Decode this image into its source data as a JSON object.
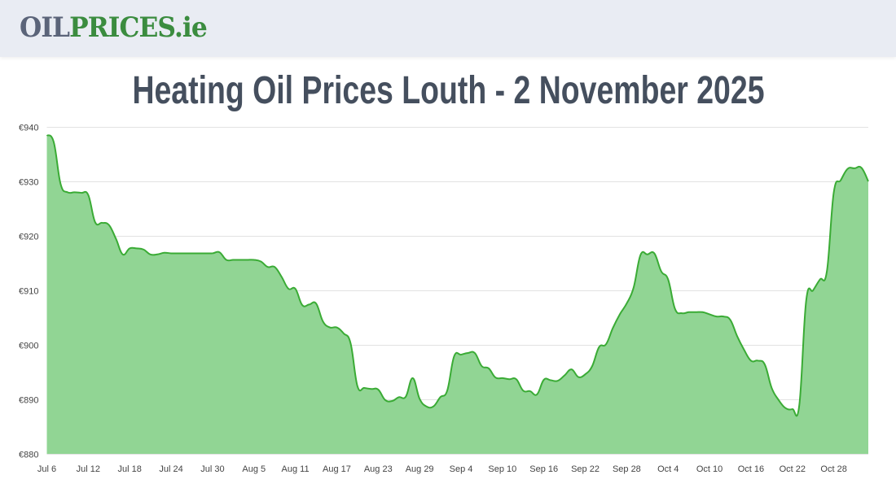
{
  "header": {
    "logo_part1": "OIL",
    "logo_part2": "PRICES.ie"
  },
  "page_title": "Heating Oil Prices Louth - 2 November 2025",
  "colors": {
    "line": "#3aab35",
    "fill": "#91d594",
    "grid": "#e2e2e2",
    "title": "#454f5e",
    "logo_gray": "#5b6479",
    "logo_green": "#3b8c3f"
  },
  "chart_data": {
    "type": "area",
    "title": "",
    "xlabel": "",
    "ylabel": "",
    "ylim": [
      880,
      940
    ],
    "y_ticks": [
      "€880",
      "€890",
      "€900",
      "€910",
      "€920",
      "€930",
      "€940"
    ],
    "y_tick_values": [
      880,
      890,
      900,
      910,
      920,
      930,
      940
    ],
    "x_ticks": [
      "Jul 6",
      "Jul 12",
      "Jul 18",
      "Jul 24",
      "Jul 30",
      "Aug 5",
      "Aug 11",
      "Aug 17",
      "Aug 23",
      "Aug 29",
      "Sep 4",
      "Sep 10",
      "Sep 16",
      "Sep 22",
      "Sep 28",
      "Oct 4",
      "Oct 10",
      "Oct 16",
      "Oct 22",
      "Oct 28"
    ],
    "grid": true,
    "x": [
      "Jul 6",
      "Jul 7",
      "Jul 8",
      "Jul 9",
      "Jul 10",
      "Jul 11",
      "Jul 12",
      "Jul 13",
      "Jul 14",
      "Jul 15",
      "Jul 16",
      "Jul 17",
      "Jul 18",
      "Jul 19",
      "Jul 20",
      "Jul 21",
      "Jul 22",
      "Jul 23",
      "Jul 24",
      "Jul 25",
      "Jul 26",
      "Jul 27",
      "Jul 28",
      "Jul 29",
      "Jul 30",
      "Jul 31",
      "Aug 1",
      "Aug 2",
      "Aug 3",
      "Aug 4",
      "Aug 5",
      "Aug 6",
      "Aug 7",
      "Aug 8",
      "Aug 9",
      "Aug 10",
      "Aug 11",
      "Aug 12",
      "Aug 13",
      "Aug 14",
      "Aug 15",
      "Aug 16",
      "Aug 17",
      "Aug 18",
      "Aug 19",
      "Aug 20",
      "Aug 21",
      "Aug 22",
      "Aug 23",
      "Aug 24",
      "Aug 25",
      "Aug 26",
      "Aug 27",
      "Aug 28",
      "Aug 29",
      "Aug 30",
      "Aug 31",
      "Sep 1",
      "Sep 2",
      "Sep 3",
      "Sep 4",
      "Sep 5",
      "Sep 6",
      "Sep 7",
      "Sep 8",
      "Sep 9",
      "Sep 10",
      "Sep 11",
      "Sep 12",
      "Sep 13",
      "Sep 14",
      "Sep 15",
      "Sep 16",
      "Sep 17",
      "Sep 18",
      "Sep 19",
      "Sep 20",
      "Sep 21",
      "Sep 22",
      "Sep 23",
      "Sep 24",
      "Sep 25",
      "Sep 26",
      "Sep 27",
      "Sep 28",
      "Sep 29",
      "Sep 30",
      "Oct 1",
      "Oct 2",
      "Oct 3",
      "Oct 4",
      "Oct 5",
      "Oct 6",
      "Oct 7",
      "Oct 8",
      "Oct 9",
      "Oct 10",
      "Oct 11",
      "Oct 12",
      "Oct 13",
      "Oct 14",
      "Oct 15",
      "Oct 16",
      "Oct 17",
      "Oct 18",
      "Oct 19",
      "Oct 20",
      "Oct 21",
      "Oct 22",
      "Oct 23",
      "Oct 24",
      "Oct 25",
      "Oct 26",
      "Oct 27",
      "Oct 28",
      "Oct 29",
      "Oct 30",
      "Oct 31",
      "Nov 1",
      "Nov 2"
    ],
    "values": [
      938.5,
      937.2,
      929.5,
      928.0,
      928.0,
      927.9,
      927.5,
      922.5,
      922.4,
      922.0,
      919.5,
      916.6,
      917.7,
      917.7,
      917.5,
      916.6,
      916.6,
      916.9,
      916.8,
      916.8,
      916.8,
      916.8,
      916.8,
      916.8,
      916.8,
      917.0,
      915.6,
      915.6,
      915.6,
      915.6,
      915.6,
      915.3,
      914.3,
      914.3,
      912.5,
      910.3,
      910.3,
      907.3,
      907.4,
      907.6,
      904.3,
      903.2,
      903.2,
      902.1,
      900.3,
      892.4,
      892.1,
      891.9,
      891.8,
      889.9,
      889.7,
      890.4,
      890.5,
      893.9,
      890.1,
      888.7,
      888.7,
      890.4,
      891.6,
      897.9,
      898.2,
      898.5,
      898.5,
      896.1,
      895.7,
      894.0,
      893.9,
      893.7,
      893.7,
      891.6,
      891.5,
      890.9,
      893.6,
      893.5,
      893.4,
      894.4,
      895.5,
      894.1,
      894.6,
      896.1,
      899.6,
      900.1,
      903.1,
      905.6,
      907.6,
      910.5,
      916.5,
      916.6,
      916.8,
      913.5,
      912.0,
      906.6,
      905.8,
      906.0,
      906.0,
      906.0,
      905.6,
      905.2,
      905.2,
      904.6,
      901.6,
      899.1,
      897.1,
      897.1,
      896.4,
      892.1,
      889.9,
      888.4,
      888.2,
      888.9,
      908.1,
      910.0,
      912.0,
      913.5,
      928.0,
      930.2,
      932.3,
      932.4,
      932.5,
      930.0
    ]
  }
}
